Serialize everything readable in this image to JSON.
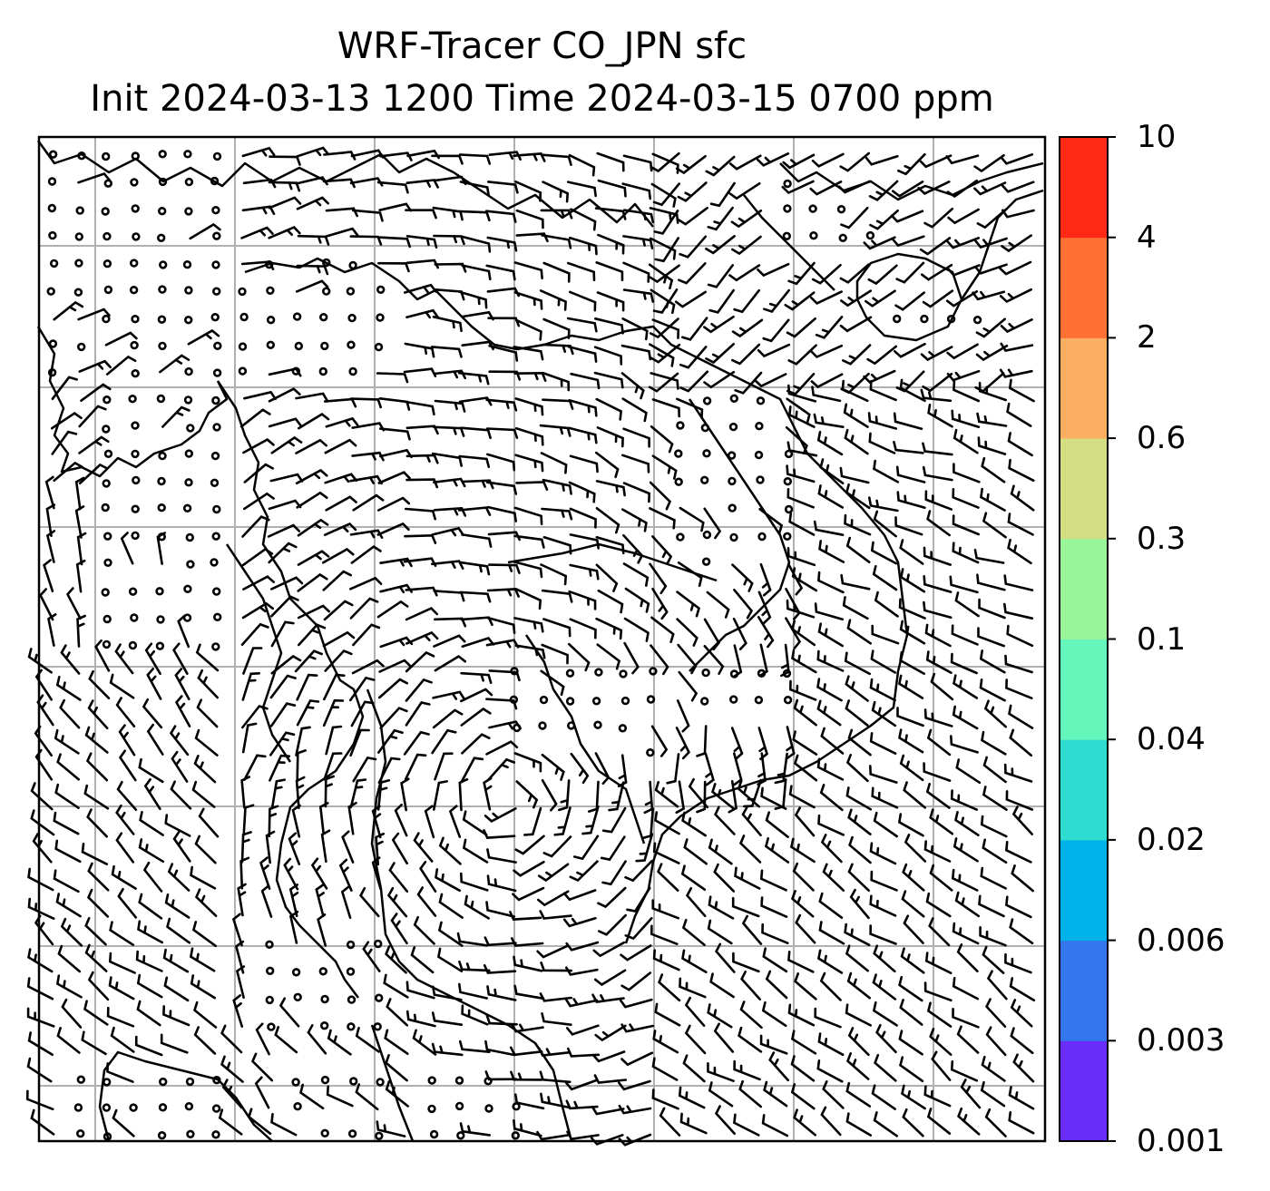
{
  "title": {
    "line1": "WRF-Tracer CO_JPN sfc",
    "line2": "Init 2024-03-13 1200 Time 2024-03-15 0700 ppm"
  },
  "map": {
    "type": "wind-barb map",
    "variable": "CO_JPN",
    "level": "sfc",
    "units": "ppm",
    "gridlines": true,
    "gridline_color": "#b0b0b0",
    "coastline_color": "#000000",
    "tracer_field_visible": false,
    "background_color": "#ffffff"
  },
  "colorbar": {
    "orientation": "vertical",
    "placement": "right",
    "levels": [
      "0.001",
      "0.003",
      "0.006",
      "0.02",
      "0.04",
      "0.1",
      "0.3",
      "0.6",
      "2",
      "4",
      "10"
    ],
    "colors": [
      "#6a2cf8",
      "#3476ee",
      "#00b2ea",
      "#2edcd2",
      "#64f6ba",
      "#98f59a",
      "#d4de82",
      "#fcae62",
      "#ff7034",
      "#ff2a16"
    ]
  }
}
